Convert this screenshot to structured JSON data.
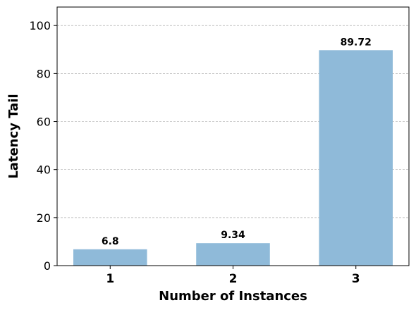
{
  "chart_data": {
    "type": "bar",
    "categories": [
      "1",
      "2",
      "3"
    ],
    "values": [
      6.8,
      9.34,
      89.72
    ],
    "data_labels": [
      "6.8",
      "9.34",
      "89.72"
    ],
    "title": "",
    "xlabel": "Number of Instances",
    "ylabel": "Latency Tail",
    "ylim": [
      0,
      107.7
    ],
    "yticks": [
      0,
      20,
      40,
      60,
      80,
      100
    ],
    "grid": "y-dashed",
    "legend": "none",
    "bar_color": "#8fbad9"
  }
}
